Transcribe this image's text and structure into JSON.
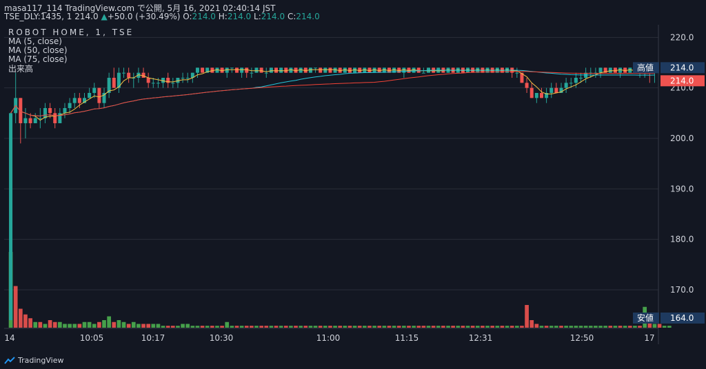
{
  "header": {
    "line1": "masa117_114 TradingView.com で公開, 5月 16, 2021 02:40:14 JST",
    "line2_prefix": "TSE_DLY:1435, 1 ",
    "price": "214.0",
    "arrow": "▲",
    "change": "+50.0 (+30.49%)",
    "o_label": "O:",
    "o_value": "214.0",
    "h_label": "H:",
    "h_value": "214.0",
    "l_label": "L:",
    "l_value": "214.0",
    "c_label": "C:",
    "c_value": "214.0"
  },
  "legend": {
    "symbol": "ROBOT HOME, 1, TSE",
    "ma5": "MA (5, close)",
    "ma50": "MA (50, close)",
    "ma75": "MA (75, close)",
    "volume": "出来高"
  },
  "branding": {
    "name": "TradingView"
  },
  "colors": {
    "up": "#26a69a",
    "down": "#ef5350",
    "vol_up": "#4caf50",
    "vol_down": "#ef5350",
    "ma5": "#f6c244",
    "ma50": "#26c6da",
    "ma75": "#f44336",
    "grid": "#2a2e39",
    "axis_text": "#d1d4dc",
    "high_badge": "#1e3a5f",
    "price_badge": "#ef5350"
  },
  "chart_data": {
    "type": "candlestick",
    "y_ticks": [
      "220.0",
      "210.0",
      "200.0",
      "190.0",
      "180.0",
      "170.0"
    ],
    "ylim": [
      162.5,
      222.5
    ],
    "x_ticks": [
      "14",
      "10:05",
      "10:17",
      "10:30",
      "11:00",
      "11:15",
      "12:31",
      "12:50",
      "17"
    ],
    "badges": {
      "high_label": "高値",
      "high_value": "214.0",
      "last_value": "214.0",
      "low_label": "安値",
      "low_value": "164.0"
    },
    "candles": [
      [
        164,
        205,
        164,
        205
      ],
      [
        205,
        213,
        203,
        208
      ],
      [
        208,
        208,
        199,
        203
      ],
      [
        203,
        206,
        200,
        204
      ],
      [
        204,
        205,
        202,
        203
      ],
      [
        203,
        205,
        203,
        204
      ],
      [
        204,
        206,
        202,
        204
      ],
      [
        204,
        207,
        203,
        206
      ],
      [
        206,
        207,
        204,
        205
      ],
      [
        205,
        206,
        202,
        203
      ],
      [
        203,
        206,
        203,
        205
      ],
      [
        205,
        207,
        204,
        206
      ],
      [
        206,
        208,
        205,
        207
      ],
      [
        207,
        209,
        206,
        208
      ],
      [
        208,
        209,
        206,
        207
      ],
      [
        207,
        209,
        207,
        208
      ],
      [
        208,
        210,
        208,
        209
      ],
      [
        209,
        211,
        208,
        210
      ],
      [
        210,
        210,
        206,
        207
      ],
      [
        207,
        210,
        206,
        209
      ],
      [
        209,
        213,
        208,
        212
      ],
      [
        212,
        214,
        210,
        210
      ],
      [
        210,
        214,
        209,
        213
      ],
      [
        213,
        214,
        212,
        213
      ],
      [
        213,
        214,
        211,
        212
      ],
      [
        212,
        213,
        210,
        212
      ],
      [
        212,
        214,
        211,
        213
      ],
      [
        213,
        214,
        212,
        212
      ],
      [
        212,
        213,
        210,
        211
      ],
      [
        211,
        212,
        210,
        211
      ],
      [
        211,
        212,
        210,
        211
      ],
      [
        211,
        212,
        210,
        212
      ],
      [
        212,
        213,
        210,
        211
      ],
      [
        211,
        212,
        210,
        211
      ],
      [
        211,
        212,
        210,
        212
      ],
      [
        212,
        213,
        211,
        212
      ],
      [
        212,
        213,
        211,
        212
      ],
      [
        212,
        213,
        211,
        213
      ],
      [
        213,
        214,
        212,
        214
      ],
      [
        214,
        214,
        213,
        213
      ],
      [
        213,
        214,
        213,
        214
      ],
      [
        214,
        214,
        213,
        213
      ],
      [
        213,
        214,
        213,
        214
      ],
      [
        214,
        214,
        213,
        213
      ],
      [
        213,
        214,
        212,
        214
      ],
      [
        214,
        214,
        213,
        214
      ],
      [
        214,
        214,
        213,
        213
      ],
      [
        213,
        214,
        212,
        214
      ],
      [
        214,
        214,
        212,
        213
      ],
      [
        213,
        214,
        212,
        213
      ],
      [
        213,
        214,
        213,
        214
      ],
      [
        214,
        214,
        213,
        213
      ],
      [
        213,
        214,
        212,
        213
      ],
      [
        213,
        214,
        213,
        214
      ],
      [
        214,
        214,
        213,
        213
      ],
      [
        213,
        214,
        213,
        214
      ],
      [
        214,
        214,
        213,
        213
      ],
      [
        213,
        214,
        213,
        214
      ],
      [
        214,
        214,
        213,
        213
      ],
      [
        213,
        214,
        213,
        214
      ],
      [
        214,
        214,
        213,
        213
      ],
      [
        213,
        214,
        213,
        214
      ],
      [
        214,
        214,
        213,
        214
      ],
      [
        214,
        214,
        213,
        213
      ],
      [
        213,
        214,
        213,
        214
      ],
      [
        214,
        214,
        213,
        213
      ],
      [
        213,
        214,
        213,
        214
      ],
      [
        214,
        214,
        213,
        213
      ],
      [
        213,
        214,
        213,
        214
      ],
      [
        214,
        214,
        213,
        213
      ],
      [
        213,
        214,
        213,
        214
      ],
      [
        214,
        214,
        213,
        213
      ],
      [
        213,
        214,
        213,
        214
      ],
      [
        214,
        214,
        213,
        213
      ],
      [
        213,
        214,
        213,
        214
      ],
      [
        214,
        214,
        213,
        213
      ],
      [
        213,
        214,
        213,
        214
      ],
      [
        214,
        214,
        213,
        213
      ],
      [
        213,
        214,
        213,
        214
      ],
      [
        214,
        214,
        213,
        213
      ],
      [
        213,
        214,
        212,
        214
      ],
      [
        214,
        214,
        213,
        213
      ],
      [
        213,
        214,
        213,
        214
      ],
      [
        214,
        214,
        213,
        213
      ],
      [
        213,
        214,
        213,
        213
      ],
      [
        213,
        214,
        213,
        214
      ],
      [
        214,
        214,
        213,
        213
      ],
      [
        213,
        214,
        213,
        214
      ],
      [
        214,
        214,
        213,
        213
      ],
      [
        213,
        214,
        213,
        214
      ],
      [
        214,
        214,
        213,
        213
      ],
      [
        213,
        214,
        213,
        214
      ],
      [
        214,
        214,
        213,
        213
      ],
      [
        213,
        214,
        213,
        214
      ],
      [
        214,
        214,
        213,
        213
      ],
      [
        213,
        214,
        213,
        214
      ],
      [
        214,
        214,
        213,
        213
      ],
      [
        213,
        214,
        213,
        214
      ],
      [
        214,
        214,
        213,
        213
      ],
      [
        213,
        214,
        213,
        214
      ],
      [
        214,
        214,
        213,
        213
      ],
      [
        213,
        214,
        213,
        214
      ],
      [
        214,
        214,
        212,
        213
      ],
      [
        213,
        214,
        212,
        213
      ],
      [
        213,
        213,
        211,
        211
      ],
      [
        211,
        212,
        209,
        210
      ],
      [
        210,
        211,
        208,
        208
      ],
      [
        208,
        209,
        207,
        209
      ],
      [
        209,
        210,
        208,
        208
      ],
      [
        208,
        210,
        207,
        209
      ],
      [
        209,
        211,
        208,
        210
      ],
      [
        210,
        211,
        209,
        209
      ],
      [
        209,
        211,
        209,
        210
      ],
      [
        210,
        212,
        209,
        211
      ],
      [
        211,
        212,
        210,
        211
      ],
      [
        211,
        213,
        210,
        212
      ],
      [
        212,
        213,
        211,
        212
      ],
      [
        212,
        214,
        211,
        213
      ],
      [
        213,
        214,
        212,
        213
      ],
      [
        213,
        214,
        212,
        213
      ],
      [
        213,
        214,
        212,
        214
      ],
      [
        214,
        214,
        213,
        213
      ],
      [
        213,
        214,
        213,
        214
      ],
      [
        214,
        214,
        213,
        213
      ],
      [
        213,
        214,
        212,
        214
      ],
      [
        214,
        214,
        213,
        213
      ],
      [
        213,
        214,
        213,
        214
      ],
      [
        214,
        214,
        213,
        213
      ],
      [
        213,
        214,
        212,
        213
      ],
      [
        213,
        214,
        212,
        214
      ],
      [
        214,
        214,
        211,
        213
      ],
      [
        213,
        214,
        211,
        214
      ]
    ],
    "volume": [
      40,
      22,
      10,
      7,
      5,
      3,
      3,
      2,
      4,
      3,
      3,
      2,
      2,
      2,
      2,
      3,
      3,
      2,
      3,
      4,
      6,
      3,
      4,
      3,
      2,
      3,
      2,
      2,
      2,
      2,
      2,
      1,
      1,
      1,
      1,
      2,
      2,
      1,
      1,
      1,
      1,
      1,
      1,
      1,
      3,
      1,
      1,
      1,
      1,
      1,
      1,
      1,
      1,
      1,
      1,
      1,
      1,
      1,
      1,
      1,
      1,
      1,
      1,
      1,
      1,
      1,
      1,
      1,
      1,
      1,
      1,
      1,
      1,
      1,
      1,
      1,
      1,
      1,
      1,
      1,
      1,
      1,
      1,
      1,
      1,
      1,
      1,
      1,
      1,
      1,
      1,
      1,
      1,
      1,
      1,
      1,
      1,
      1,
      1,
      1,
      1,
      1,
      1,
      1,
      1,
      12,
      4,
      2,
      1,
      1,
      1,
      1,
      1,
      1,
      1,
      1,
      1,
      1,
      1,
      1,
      1,
      1,
      1,
      1,
      1,
      1,
      1,
      1,
      1,
      11,
      4,
      2,
      2,
      1,
      1
    ],
    "volume_dir": [
      1,
      0,
      0,
      0,
      0,
      1,
      0,
      1,
      0,
      0,
      1,
      1,
      1,
      1,
      0,
      1,
      1,
      1,
      0,
      1,
      1,
      0,
      1,
      1,
      0,
      1,
      1,
      0,
      0,
      1,
      1,
      1,
      0,
      0,
      1,
      1,
      1,
      1,
      1,
      0,
      1,
      0,
      1,
      0,
      1,
      1,
      0,
      1,
      0,
      0,
      1,
      0,
      0,
      1,
      0,
      1,
      0,
      1,
      0,
      1,
      0,
      1,
      1,
      0,
      1,
      0,
      1,
      0,
      1,
      0,
      1,
      0,
      1,
      0,
      1,
      0,
      1,
      0,
      1,
      0,
      1,
      0,
      1,
      0,
      0,
      1,
      0,
      1,
      0,
      1,
      0,
      1,
      0,
      1,
      0,
      1,
      0,
      1,
      0,
      1,
      0,
      1,
      0,
      1,
      0,
      0,
      0,
      0,
      1,
      0,
      1,
      1,
      0,
      1,
      1,
      1,
      1,
      1,
      1,
      1,
      1,
      1,
      0,
      1,
      0,
      1,
      0,
      1,
      0,
      1,
      0,
      1,
      0,
      1,
      1
    ]
  }
}
